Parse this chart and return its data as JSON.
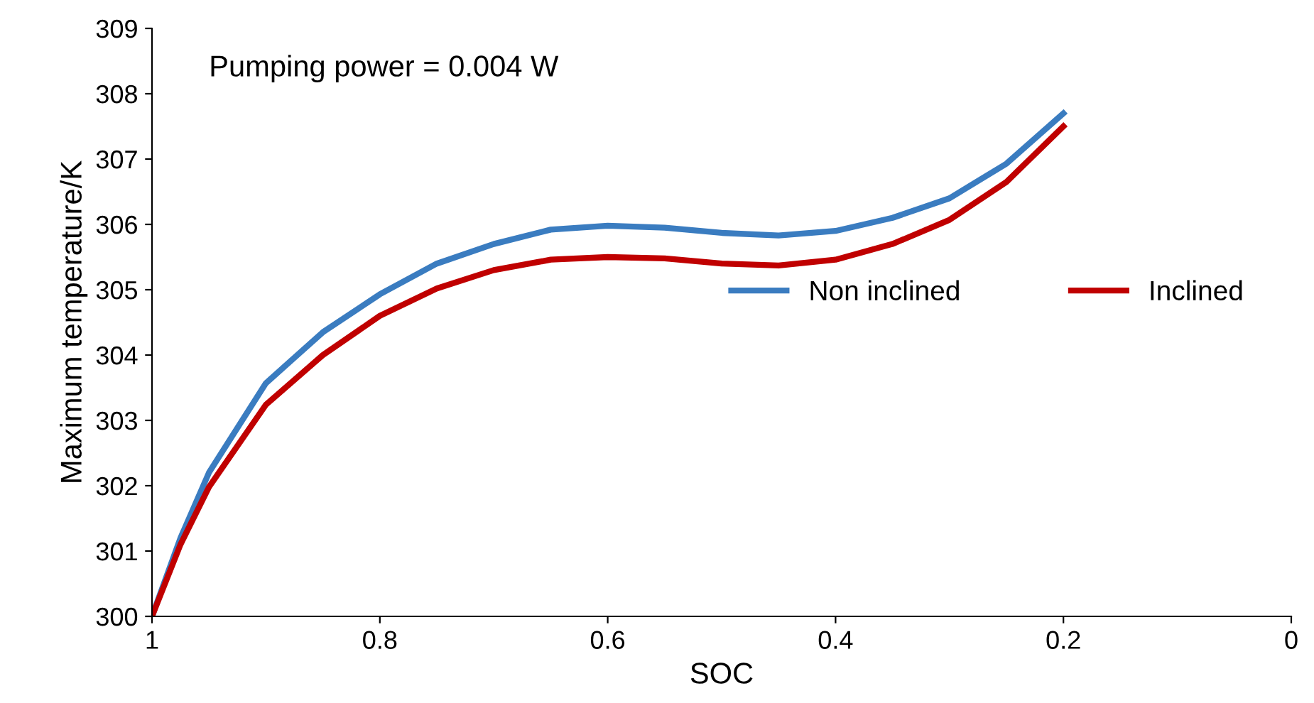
{
  "chart_data": {
    "type": "line",
    "xlabel": "SOC",
    "ylabel": "Maximum temperature/K",
    "annotations": [
      "Pumping power = 0.004 W"
    ],
    "x": [
      1,
      0.975,
      0.95,
      0.9,
      0.85,
      0.8,
      0.75,
      0.7,
      0.65,
      0.6,
      0.55,
      0.5,
      0.45,
      0.4,
      0.35,
      0.3,
      0.25,
      0.2
    ],
    "series": [
      {
        "name": "Non inclined",
        "color": "#3a7cc0",
        "values": [
          300.0,
          301.2,
          302.2,
          303.57,
          304.35,
          304.93,
          305.4,
          305.7,
          305.92,
          305.98,
          305.95,
          305.87,
          305.83,
          305.9,
          306.1,
          306.4,
          306.93,
          307.7
        ]
      },
      {
        "name": "Inclined",
        "color": "#c00000",
        "values": [
          300.0,
          301.1,
          301.98,
          303.24,
          304.0,
          304.6,
          305.02,
          305.3,
          305.46,
          305.5,
          305.48,
          305.4,
          305.37,
          305.46,
          305.7,
          306.07,
          306.65,
          307.5
        ]
      }
    ],
    "xlim": [
      1,
      0
    ],
    "ylim": [
      300,
      309
    ],
    "xticks": [
      1,
      0.8,
      0.6,
      0.4,
      0.2,
      0
    ],
    "yticks": [
      300,
      301,
      302,
      303,
      304,
      305,
      306,
      307,
      308,
      309
    ],
    "grid": false,
    "legend": "right",
    "marker": "none",
    "line_style": "solid"
  }
}
